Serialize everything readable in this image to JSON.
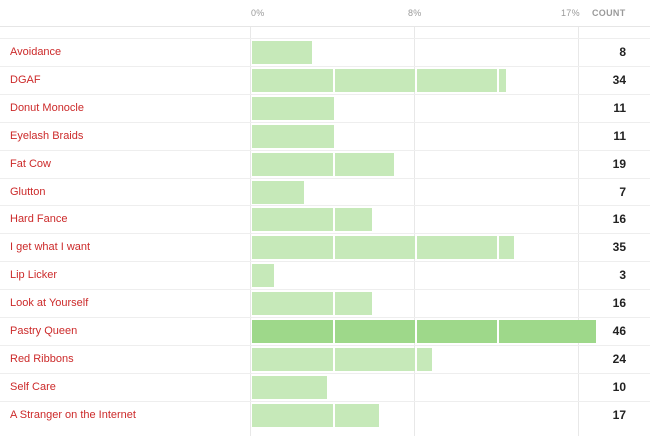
{
  "header": {
    "tick0": "0%",
    "tick1": "8%",
    "tick2": "17%",
    "count_label": "COUNT"
  },
  "colors": {
    "bar": "#c6e9b9",
    "bar_max": "#9ed88a",
    "label": "#cc2a2a"
  },
  "chart_data": {
    "type": "bar",
    "orientation": "horizontal",
    "xlim_percent": [
      0,
      17
    ],
    "ticks": [
      "0%",
      "8%",
      "17%"
    ],
    "value_column": "COUNT",
    "categories": [
      "Avoidance",
      "DGAF",
      "Donut Monocle",
      "Eyelash Braids",
      "Fat Cow",
      "Glutton",
      "Hard Fance",
      "I get what I want",
      "Lip Licker",
      "Look at Yourself",
      "Pastry Queen",
      "Red Ribbons",
      "Self Care",
      "A Stranger on the Internet"
    ],
    "values": [
      8,
      34,
      11,
      11,
      19,
      7,
      16,
      35,
      3,
      16,
      46,
      24,
      10,
      17
    ]
  },
  "rows": [
    {
      "label": "Avoidance",
      "count": "8"
    },
    {
      "label": "DGAF",
      "count": "34"
    },
    {
      "label": "Donut Monocle",
      "count": "11"
    },
    {
      "label": "Eyelash Braids",
      "count": "11"
    },
    {
      "label": "Fat Cow",
      "count": "19"
    },
    {
      "label": "Glutton",
      "count": "7"
    },
    {
      "label": "Hard Fance",
      "count": "16"
    },
    {
      "label": "I get what I want",
      "count": "35"
    },
    {
      "label": "Lip Licker",
      "count": "3"
    },
    {
      "label": "Look at Yourself",
      "count": "16"
    },
    {
      "label": "Pastry Queen",
      "count": "46"
    },
    {
      "label": "Red Ribbons",
      "count": "24"
    },
    {
      "label": "Self Care",
      "count": "10"
    },
    {
      "label": "A Stranger on the Internet",
      "count": "17"
    }
  ]
}
